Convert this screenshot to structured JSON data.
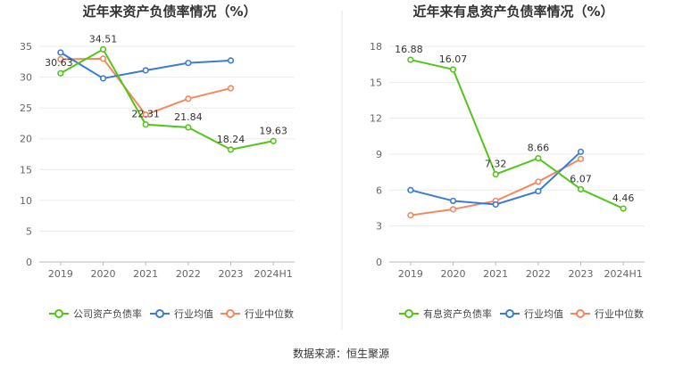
{
  "source": "数据来源：恒生聚源",
  "colors": {
    "company": "#52c41a",
    "industry_avg": "#3a7bd5",
    "industry_median": "#f5875e"
  },
  "chart_data": [
    {
      "type": "line",
      "title": "近年来资产负债率情况（%）",
      "categories": [
        "2019",
        "2020",
        "2021",
        "2022",
        "2023",
        "2024H1"
      ],
      "ylim": [
        0,
        35
      ],
      "yticks": [
        0,
        5,
        10,
        15,
        20,
        25,
        30,
        35
      ],
      "grid": true,
      "legend_position": "bottom",
      "series": [
        {
          "name": "公司资产负债率",
          "key": "company",
          "values": [
            30.63,
            34.51,
            22.31,
            21.84,
            18.24,
            19.63
          ],
          "labels": [
            "30.63",
            "34.51",
            "22.31",
            "21.84",
            "18.24",
            "19.63"
          ]
        },
        {
          "name": "行业均值",
          "key": "industry_avg",
          "values": [
            34.0,
            29.8,
            31.1,
            32.3,
            32.7,
            null
          ]
        },
        {
          "name": "行业中位数",
          "key": "industry_median",
          "values": [
            32.9,
            33.0,
            23.9,
            26.5,
            28.2,
            null
          ]
        }
      ]
    },
    {
      "type": "line",
      "title": "近年来有息资产负债率情况（%）",
      "categories": [
        "2019",
        "2020",
        "2021",
        "2022",
        "2023",
        "2024H1"
      ],
      "ylim": [
        0,
        18
      ],
      "yticks": [
        0,
        3,
        6,
        9,
        12,
        15,
        18
      ],
      "grid": true,
      "legend_position": "bottom",
      "series": [
        {
          "name": "有息资产负债率",
          "key": "company",
          "values": [
            16.88,
            16.07,
            7.32,
            8.66,
            6.07,
            4.46
          ],
          "labels": [
            "16.88",
            "16.07",
            "7.32",
            "8.66",
            "6.07",
            "4.46"
          ]
        },
        {
          "name": "行业均值",
          "key": "industry_avg",
          "values": [
            6.0,
            5.1,
            4.8,
            5.9,
            9.2,
            null
          ]
        },
        {
          "name": "行业中位数",
          "key": "industry_median",
          "values": [
            3.9,
            4.4,
            5.1,
            6.7,
            8.6,
            null
          ]
        }
      ]
    }
  ]
}
